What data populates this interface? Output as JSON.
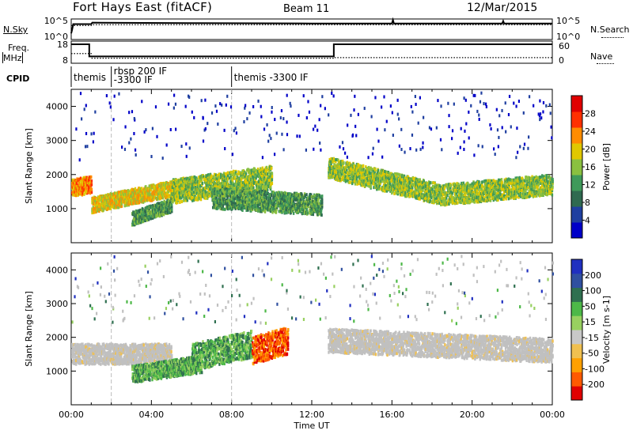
{
  "header": {
    "title": "Fort Hays East (fitACF)",
    "beam": "Beam 11",
    "date": "12/Mar/2015"
  },
  "labels": {
    "nsky": "N.Sky",
    "nsearch": "N.Search",
    "freq": "Freq.",
    "freq_unit": "MHz",
    "nave": "Nave",
    "cpid": "CPID"
  },
  "colors": {
    "power_scale": [
      "#0000c8",
      "#1f3fa0",
      "#2f6a50",
      "#3f9a5a",
      "#8ac040",
      "#e0c800",
      "#ff8c00",
      "#ff3000",
      "#e00000"
    ],
    "velocity_scale": [
      "#e00000",
      "#ff5a00",
      "#ffa000",
      "#f0c050",
      "#c8c8c8",
      "#98d060",
      "#4db848",
      "#2f7050",
      "#3050a0",
      "#2030c0"
    ],
    "ground_scatter": "#c0c0c0"
  },
  "chart_data": [
    {
      "type": "line",
      "name": "noise-panel",
      "left_axis_label": "N.Sky",
      "right_axis_label": "N.Search",
      "left_ticks": [
        "10^5",
        "10^0"
      ],
      "right_ticks": [
        "10^5",
        "10^0"
      ],
      "x_range": [
        "00:00",
        "24:00"
      ],
      "series": [
        {
          "name": "N.Sky",
          "style": "solid",
          "time_h": [
            0.0,
            0.05,
            0.1,
            1.0,
            1.05,
            6,
            12,
            13.2,
            16,
            16.05,
            16.1,
            21.5,
            21.55,
            21.6,
            24
          ],
          "level": [
            0.3,
            0.5,
            0.75,
            0.75,
            0.82,
            0.8,
            0.78,
            0.78,
            0.78,
            0.95,
            0.78,
            0.78,
            0.9,
            0.78,
            0.78
          ]
        },
        {
          "name": "N.Search",
          "style": "dotted",
          "time_h": [
            0.0,
            1.0,
            1.05,
            24
          ],
          "level": [
            0.68,
            0.68,
            0.72,
            0.72
          ]
        }
      ]
    },
    {
      "type": "line",
      "name": "frequency-panel",
      "left_axis_label": "Freq. MHz",
      "right_axis_label": "Nave",
      "left_ticks": [
        "18",
        "8"
      ],
      "right_ticks": [
        "60",
        "0"
      ],
      "series": [
        {
          "name": "Freq.",
          "style": "solid",
          "time_h": [
            0,
            0.9,
            0.9,
            13.1,
            13.1,
            24
          ],
          "value": [
            18,
            18,
            11,
            11,
            18,
            18
          ]
        },
        {
          "name": "Nave",
          "style": "dotted",
          "time_h": [
            0,
            1.0,
            1.0,
            13.1,
            13.1,
            24
          ],
          "value": [
            28,
            28,
            12,
            12,
            14,
            14
          ]
        }
      ]
    },
    {
      "type": "table",
      "name": "cpid-strip",
      "segments": [
        {
          "start_h": 0.0,
          "label": "themis"
        },
        {
          "start_h": 2.0,
          "label": "rbsp 200 IF\n-3300 IF"
        },
        {
          "start_h": 8.0,
          "label": "themis -3300 IF"
        }
      ]
    },
    {
      "type": "heatmap",
      "name": "power-panel",
      "ylabel": "Slant Range [km]",
      "yticks": [
        1000,
        2000,
        3000,
        4000
      ],
      "ylim": [
        0,
        4500
      ],
      "x_range": [
        "00:00",
        "24:00"
      ],
      "colorbar_label": "Power [dB]",
      "colorbar_ticks": [
        4,
        8,
        12,
        16,
        20,
        24,
        28
      ],
      "colorbar_range": [
        0,
        32
      ],
      "bands": [
        {
          "start_h": 0.0,
          "end_h": 1.0,
          "range_start_km": 1600,
          "range_end_km": 1700,
          "width_km": 500,
          "power_db": 22
        },
        {
          "start_h": 1.0,
          "end_h": 6.0,
          "range_start_km": 1100,
          "range_end_km": 1700,
          "width_km": 450,
          "power_db": 20
        },
        {
          "start_h": 3.0,
          "end_h": 5.0,
          "range_start_km": 700,
          "range_end_km": 1100,
          "width_km": 400,
          "power_db": 10
        },
        {
          "start_h": 5.0,
          "end_h": 10.0,
          "range_start_km": 1500,
          "range_end_km": 1900,
          "width_km": 700,
          "power_db": 14
        },
        {
          "start_h": 7.0,
          "end_h": 12.5,
          "range_start_km": 1300,
          "range_end_km": 1100,
          "width_km": 600,
          "power_db": 11
        },
        {
          "start_h": 12.8,
          "end_h": 18.5,
          "range_start_km": 2200,
          "range_end_km": 1400,
          "width_km": 600,
          "power_db": 16
        },
        {
          "start_h": 18.5,
          "end_h": 24.0,
          "range_start_km": 1400,
          "range_end_km": 1700,
          "width_km": 600,
          "power_db": 17
        }
      ]
    },
    {
      "type": "heatmap",
      "name": "velocity-panel",
      "ylabel": "Slant Range [km]",
      "yticks": [
        1000,
        2000,
        3000,
        4000
      ],
      "ylim": [
        0,
        4500
      ],
      "x_range": [
        "00:00",
        "24:00"
      ],
      "xticks": [
        "00:00",
        "04:00",
        "08:00",
        "12:00",
        "16:00",
        "20:00",
        "00:00"
      ],
      "xlabel": "Time UT",
      "colorbar_label": "Velocity [m s-1]",
      "colorbar_ticks": [
        -200,
        -100,
        -50,
        -15,
        15,
        50,
        100,
        200
      ],
      "bands": [
        {
          "start_h": 0.0,
          "end_h": 5.0,
          "range_start_km": 1500,
          "range_end_km": 1500,
          "width_km": 600,
          "velocity": 0
        },
        {
          "start_h": 3.0,
          "end_h": 6.5,
          "range_start_km": 900,
          "range_end_km": 1200,
          "width_km": 500,
          "velocity": 40
        },
        {
          "start_h": 6.0,
          "end_h": 9.0,
          "range_start_km": 1400,
          "range_end_km": 1800,
          "width_km": 800,
          "velocity": 60
        },
        {
          "start_h": 9.0,
          "end_h": 10.8,
          "range_start_km": 1600,
          "range_end_km": 1900,
          "width_km": 800,
          "velocity": -80
        },
        {
          "start_h": 12.8,
          "end_h": 24.0,
          "range_start_km": 1900,
          "range_end_km": 1600,
          "width_km": 700,
          "velocity": 0
        }
      ]
    }
  ]
}
